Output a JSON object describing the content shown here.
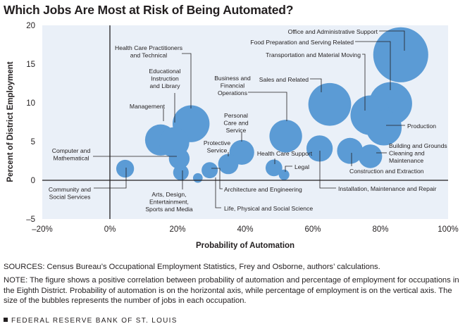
{
  "title": "Which Jobs Are Most at Risk of Being Automated?",
  "sources": "SOURCES: Census Bureau’s Occupational Employment Statistics, Frey and Osborne, authors’ calculations.",
  "note": "NOTE: The figure shows a positive correlation between probability of automation and percentage of employment for occupations in the Eighth District. Probability of automation is on the horizontal axis, while percentage of employment is on the vertical axis. The size of the bubbles represents the number of jobs in each occupation.",
  "footer": "FEDERAL RESERVE BANK OF ST. LOUIS",
  "colors": {
    "bubble": "#5b9bd5",
    "plot_bg": "#eaf0f8",
    "axis": "#231f20",
    "leader": "#231f20"
  },
  "chart_data": {
    "type": "scatter",
    "subtype": "bubble",
    "title": "Which Jobs Are Most at Risk of Being Automated?",
    "xlabel": "Probability of Automation",
    "ylabel": "Percent of District Employment",
    "xlim": [
      -20,
      100
    ],
    "ylim": [
      -5,
      20
    ],
    "x_ticks": [
      -20,
      0,
      20,
      40,
      60,
      80,
      100
    ],
    "x_tick_labels": [
      "–20%",
      "0%",
      "20%",
      "40%",
      "60%",
      "80%",
      "100%"
    ],
    "y_ticks": [
      -5,
      0,
      5,
      10,
      15,
      20
    ],
    "y_tick_labels": [
      "–5",
      "0",
      "5",
      "10",
      "15",
      "20"
    ],
    "grid": false,
    "points": [
      {
        "name": "Office and Administrative Support",
        "lines": [
          "Office and Administrative Support"
        ],
        "x": 86,
        "y": 16.2,
        "size": 16.2
      },
      {
        "name": "Food Preparation and Serving Related",
        "lines": [
          "Food Preparation and Serving Related"
        ],
        "x": 83,
        "y": 9.9,
        "size": 9.9
      },
      {
        "name": "Transportation and Material Moving",
        "lines": [
          "Transportation and Material Moving"
        ],
        "x": 77,
        "y": 8.4,
        "size": 8.4
      },
      {
        "name": "Production",
        "lines": [
          "Production"
        ],
        "x": 81,
        "y": 6.8,
        "size": 6.8
      },
      {
        "name": "Sales and Related",
        "lines": [
          "Sales and Related"
        ],
        "x": 65,
        "y": 9.8,
        "size": 9.8
      },
      {
        "name": "Business and Financial Operations",
        "lines": [
          "Business and",
          "Financial",
          "Operations"
        ],
        "x": 52,
        "y": 5.7,
        "size": 5.7
      },
      {
        "name": "Health Care Practitioners and Technical",
        "lines": [
          "Health Care Practitioners",
          "and Technical"
        ],
        "x": 24,
        "y": 7.3,
        "size": 7.3
      },
      {
        "name": "Educational Instruction and Library",
        "lines": [
          "Educational",
          "Instruction",
          "and Library"
        ],
        "x": 19,
        "y": 4.9,
        "size": 4.9
      },
      {
        "name": "Management",
        "lines": [
          "Management"
        ],
        "x": 15,
        "y": 5.2,
        "size": 5.2
      },
      {
        "name": "Personal Care and Service",
        "lines": [
          "Personal",
          "Care and",
          "Service"
        ],
        "x": 39,
        "y": 3.6,
        "size": 3.3
      },
      {
        "name": "Protective Service",
        "lines": [
          "Protective",
          "Service"
        ],
        "x": 35,
        "y": 2.1,
        "size": 2.2
      },
      {
        "name": "Computer and Mathematical",
        "lines": [
          "Computer and",
          "Mathematical"
        ],
        "x": 20.5,
        "y": 2.8,
        "size": 2.3
      },
      {
        "name": "Health Care Support",
        "lines": [
          "Health Care Support"
        ],
        "x": 48.5,
        "y": 1.6,
        "size": 1.5
      },
      {
        "name": "Legal",
        "lines": [
          "Legal"
        ],
        "x": 51.5,
        "y": 0.7,
        "size": 0.6
      },
      {
        "name": "Installation, Maintenance and Repair",
        "lines": [
          "Installation, Maintenance and Repair"
        ],
        "x": 62,
        "y": 4.1,
        "size": 3.7
      },
      {
        "name": "Building and Grounds Cleaning and Maintenance",
        "lines": [
          "Building and Grounds",
          "Cleaning and",
          "Maintenance"
        ],
        "x": 77,
        "y": 3.1,
        "size": 3.0
      },
      {
        "name": "Construction and Extraction",
        "lines": [
          "Construction and Extraction"
        ],
        "x": 71,
        "y": 3.8,
        "size": 3.6
      },
      {
        "name": "Community and Social Services",
        "lines": [
          "Community and",
          "Social Services"
        ],
        "x": 4.5,
        "y": 1.5,
        "size": 1.7
      },
      {
        "name": "Arts, Design, Entertainment, Sports and Media",
        "lines": [
          "Arts, Design,",
          "Entertainment,",
          "Sports and Media"
        ],
        "x": 21,
        "y": 1.0,
        "size": 1.3
      },
      {
        "name": "Architecture and Engineering",
        "lines": [
          "Architecture and Engineering"
        ],
        "x": 29.5,
        "y": 1.3,
        "size": 1.4
      },
      {
        "name": "Life, Physical and Social Science",
        "lines": [
          "Life, Physical and Social Science"
        ],
        "x": 26,
        "y": 0.3,
        "size": 0.5
      }
    ]
  }
}
